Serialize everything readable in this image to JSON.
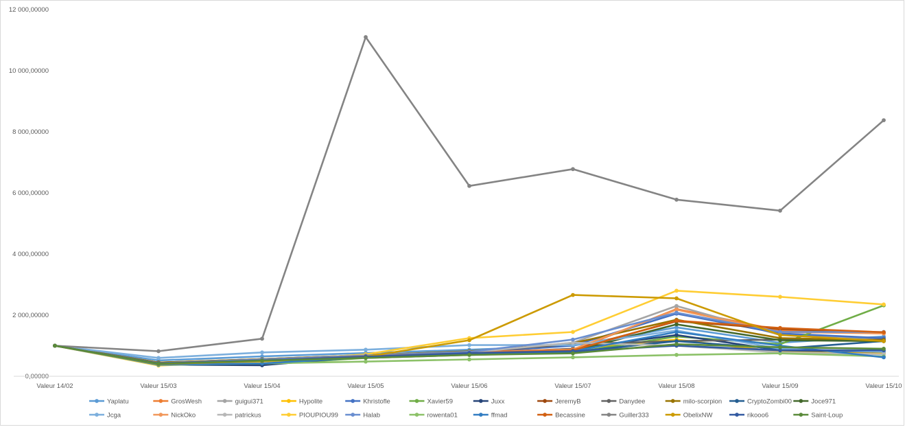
{
  "chart_data": {
    "type": "line",
    "title": "",
    "xlabel": "",
    "ylabel": "",
    "categories": [
      "Valeur 14/02",
      "Valeur 15/03",
      "Valeur 15/04",
      "Valeur 15/05",
      "Valeur 15/06",
      "Valeur 15/07",
      "Valeur 15/08",
      "Valeur 15/09",
      "Valeur 15/10"
    ],
    "ylim": [
      0,
      12000
    ],
    "yticks": [
      0,
      2000,
      4000,
      6000,
      8000,
      10000,
      12000
    ],
    "ytick_labels": [
      "0,00000",
      "2 000,00000",
      "4 000,00000",
      "6 000,00000",
      "8 000,00000",
      "10 000,00000",
      "12 000,00000"
    ],
    "grid": false,
    "legend_position": "bottom",
    "series": [
      {
        "name": "Yaplatu",
        "color": "#5B9BD5",
        "values": [
          1000,
          520,
          650,
          760,
          870,
          1000,
          1600,
          1100,
          1300
        ]
      },
      {
        "name": "GrosWesh",
        "color": "#ED7D31",
        "values": [
          1000,
          420,
          520,
          700,
          800,
          850,
          2200,
          1500,
          1400
        ]
      },
      {
        "name": "guigui371",
        "color": "#A5A5A5",
        "values": [
          1000,
          400,
          500,
          650,
          780,
          1100,
          2300,
          1350,
          1250
        ]
      },
      {
        "name": "Hypolite",
        "color": "#FFC000",
        "values": [
          1000,
          380,
          480,
          620,
          740,
          900,
          1200,
          800,
          750
        ]
      },
      {
        "name": "Khristofle",
        "color": "#4472C4",
        "values": [
          1000,
          430,
          540,
          660,
          780,
          1000,
          2050,
          1400,
          1250
        ]
      },
      {
        "name": "Xavier59",
        "color": "#70AD47",
        "values": [
          1000,
          420,
          380,
          600,
          700,
          780,
          1300,
          1050,
          2320
        ]
      },
      {
        "name": "Juxx",
        "color": "#264478",
        "values": [
          1000,
          380,
          360,
          650,
          760,
          900,
          1350,
          850,
          800
        ]
      },
      {
        "name": "JeremyB",
        "color": "#9E480E",
        "values": [
          1000,
          450,
          560,
          690,
          800,
          880,
          1800,
          1550,
          1420
        ]
      },
      {
        "name": "Danydee",
        "color": "#636363",
        "values": [
          1000,
          440,
          560,
          680,
          800,
          1050,
          1150,
          1200,
          1200
        ]
      },
      {
        "name": "milo-scorpion",
        "color": "#997300",
        "values": [
          1000,
          450,
          560,
          690,
          820,
          1080,
          1850,
          1250,
          1180
        ]
      },
      {
        "name": "CryptoZombi00",
        "color": "#255E91",
        "values": [
          1000,
          420,
          520,
          650,
          760,
          800,
          1150,
          900,
          1150
        ]
      },
      {
        "name": "Joce971",
        "color": "#43682B",
        "values": [
          1000,
          430,
          540,
          660,
          790,
          820,
          1700,
          1180,
          1150
        ]
      },
      {
        "name": "Jcga",
        "color": "#7CAFDD",
        "values": [
          1000,
          600,
          780,
          870,
          1020,
          1020,
          1500,
          900,
          800
        ]
      },
      {
        "name": "NickOko",
        "color": "#F1975A",
        "values": [
          1000,
          420,
          520,
          650,
          780,
          880,
          2180,
          1450,
          1400
        ]
      },
      {
        "name": "patrickus",
        "color": "#B7B7B7",
        "values": [
          1000,
          410,
          510,
          650,
          780,
          1100,
          1000,
          780,
          720
        ]
      },
      {
        "name": "PIOUPIOU99",
        "color": "#FFCD33",
        "values": [
          1000,
          350,
          480,
          720,
          1250,
          1450,
          2800,
          2600,
          2350
        ]
      },
      {
        "name": "Halab",
        "color": "#698ED0",
        "values": [
          1000,
          430,
          550,
          680,
          800,
          1200,
          2080,
          1450,
          1450
        ]
      },
      {
        "name": "rowenta01",
        "color": "#8CC168",
        "values": [
          1000,
          370,
          420,
          480,
          550,
          620,
          700,
          750,
          650
        ]
      },
      {
        "name": "ffmad",
        "color": "#327DC2",
        "values": [
          1000,
          380,
          420,
          620,
          720,
          820,
          1450,
          1000,
          620
        ]
      },
      {
        "name": "Becassine",
        "color": "#D26012",
        "values": [
          1000,
          420,
          520,
          650,
          760,
          850,
          1820,
          1580,
          1440
        ]
      },
      {
        "name": "Guiller333",
        "color": "#848484",
        "values": [
          1000,
          820,
          1230,
          11100,
          6230,
          6780,
          5780,
          5420,
          8380
        ]
      },
      {
        "name": "ObelixNW",
        "color": "#CC9A00",
        "values": [
          1000,
          400,
          500,
          640,
          1180,
          2660,
          2550,
          1350,
          1150
        ]
      },
      {
        "name": "rikooo6",
        "color": "#335AA1",
        "values": [
          1000,
          420,
          520,
          640,
          760,
          820,
          1000,
          850,
          850
        ]
      },
      {
        "name": "Saint-Loup",
        "color": "#5A8A3A",
        "values": [
          1000,
          410,
          510,
          600,
          700,
          750,
          1050,
          950,
          900
        ]
      }
    ]
  }
}
